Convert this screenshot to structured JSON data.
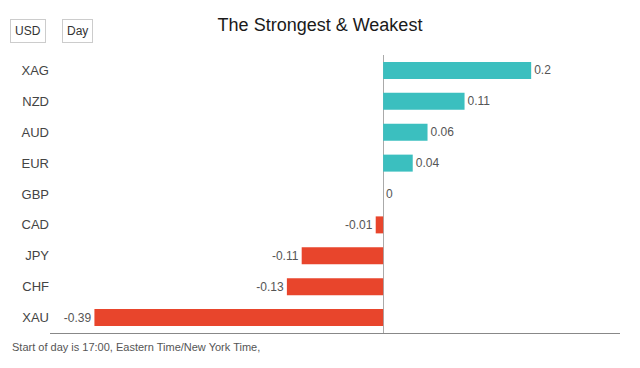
{
  "chart_data": {
    "type": "bar",
    "orientation": "horizontal",
    "title": "The Strongest & Weakest",
    "categories": [
      "XAG",
      "NZD",
      "AUD",
      "EUR",
      "GBP",
      "CAD",
      "JPY",
      "CHF",
      "XAU"
    ],
    "values": [
      0.2,
      0.11,
      0.06,
      0.04,
      0,
      -0.01,
      -0.11,
      -0.13,
      -0.39
    ],
    "colors": [
      "#3bbfbf",
      "#3bbfbf",
      "#3bbfbf",
      "#3bbfbf",
      "#3bbfbf",
      "#e8452c",
      "#e8452c",
      "#e8452c",
      "#e8452c"
    ],
    "xlim": [
      -0.45,
      0.32
    ],
    "data_labels": true,
    "tick_labels": "y",
    "grid": false,
    "annotations": [
      "USD",
      "Day",
      "Start of day is 17:00, Eastern Time/New York Time,"
    ]
  }
}
